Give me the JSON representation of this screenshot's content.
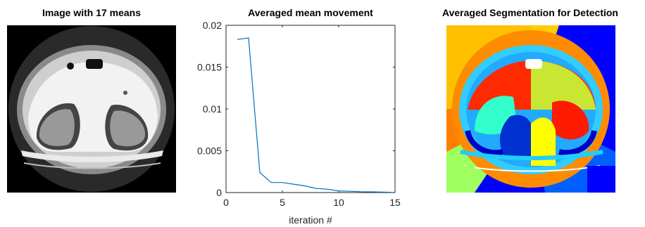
{
  "panels": {
    "left_title": "Image with 17 means",
    "right_title": "Averaged Segmentation for Detection"
  },
  "chart_data": {
    "type": "line",
    "title": "Averaged mean movement",
    "xlabel": "iteration #",
    "ylabel": "",
    "xlim": [
      0,
      15
    ],
    "ylim": [
      0,
      0.02
    ],
    "xticks": [
      0,
      5,
      10,
      15
    ],
    "yticks": [
      0,
      0.005,
      0.01,
      0.015,
      0.02
    ],
    "xtick_labels": [
      "0",
      "5",
      "10",
      "15"
    ],
    "ytick_labels": [
      "0",
      "0.005",
      "0.01",
      "0.015",
      "0.02"
    ],
    "grid": false,
    "series": [
      {
        "x": [
          1,
          2,
          3,
          4,
          5,
          6,
          7,
          8,
          9,
          10,
          11,
          12,
          13,
          14,
          15
        ],
        "y": [
          0.0183,
          0.0185,
          0.0024,
          0.0012,
          0.0012,
          0.001,
          0.0008,
          0.0005,
          0.0004,
          0.0002,
          0.00015,
          0.0001,
          8e-05,
          5e-05,
          2e-05
        ],
        "color": "#0072BD"
      }
    ]
  }
}
